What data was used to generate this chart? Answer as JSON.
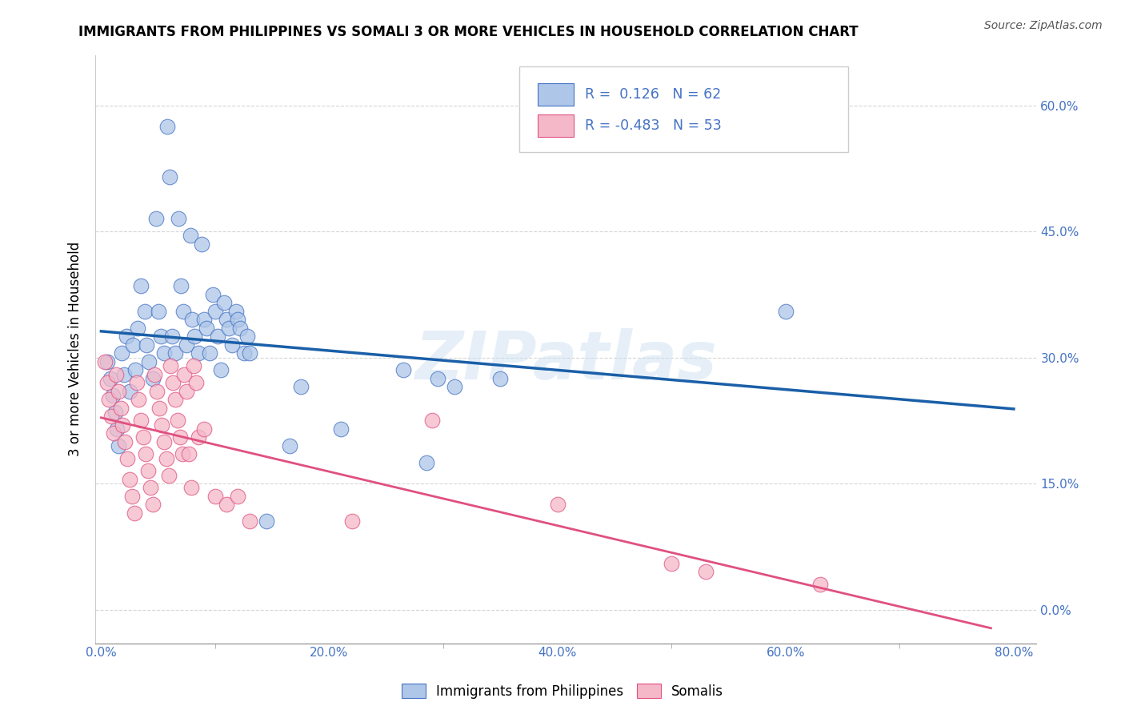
{
  "title": "IMMIGRANTS FROM PHILIPPINES VS SOMALI 3 OR MORE VEHICLES IN HOUSEHOLD CORRELATION CHART",
  "source": "Source: ZipAtlas.com",
  "xlabel_ticks": [
    "0.0%",
    "",
    "20.0%",
    "",
    "40.0%",
    "",
    "60.0%",
    "",
    "80.0%"
  ],
  "xlabel_tick_vals": [
    0.0,
    0.1,
    0.2,
    0.3,
    0.4,
    0.5,
    0.6,
    0.7,
    0.8
  ],
  "ylabel": "3 or more Vehicles in Household",
  "ylabel_ticks": [
    "0.0%",
    "15.0%",
    "30.0%",
    "45.0%",
    "60.0%"
  ],
  "ylabel_tick_vals": [
    0.0,
    0.15,
    0.3,
    0.45,
    0.6
  ],
  "xlim": [
    -0.005,
    0.82
  ],
  "ylim": [
    -0.04,
    0.66
  ],
  "watermark": "ZIPatlas",
  "legend_blue_label": "Immigrants from Philippines",
  "legend_pink_label": "Somalis",
  "blue_R": 0.126,
  "blue_N": 62,
  "pink_R": -0.483,
  "pink_N": 53,
  "blue_color": "#aec6e8",
  "pink_color": "#f5b8c8",
  "blue_edge_color": "#4472c4",
  "pink_edge_color": "#e05080",
  "blue_line_color": "#1a5fa8",
  "pink_line_color": "#e05080",
  "blue_scatter": [
    [
      0.005,
      0.295
    ],
    [
      0.008,
      0.275
    ],
    [
      0.01,
      0.255
    ],
    [
      0.012,
      0.235
    ],
    [
      0.014,
      0.215
    ],
    [
      0.015,
      0.195
    ],
    [
      0.018,
      0.305
    ],
    [
      0.02,
      0.28
    ],
    [
      0.022,
      0.325
    ],
    [
      0.025,
      0.26
    ],
    [
      0.028,
      0.315
    ],
    [
      0.03,
      0.285
    ],
    [
      0.032,
      0.335
    ],
    [
      0.035,
      0.385
    ],
    [
      0.038,
      0.355
    ],
    [
      0.04,
      0.315
    ],
    [
      0.042,
      0.295
    ],
    [
      0.045,
      0.275
    ],
    [
      0.048,
      0.465
    ],
    [
      0.05,
      0.355
    ],
    [
      0.052,
      0.325
    ],
    [
      0.055,
      0.305
    ],
    [
      0.058,
      0.575
    ],
    [
      0.06,
      0.515
    ],
    [
      0.062,
      0.325
    ],
    [
      0.065,
      0.305
    ],
    [
      0.068,
      0.465
    ],
    [
      0.07,
      0.385
    ],
    [
      0.072,
      0.355
    ],
    [
      0.075,
      0.315
    ],
    [
      0.078,
      0.445
    ],
    [
      0.08,
      0.345
    ],
    [
      0.082,
      0.325
    ],
    [
      0.085,
      0.305
    ],
    [
      0.088,
      0.435
    ],
    [
      0.09,
      0.345
    ],
    [
      0.092,
      0.335
    ],
    [
      0.095,
      0.305
    ],
    [
      0.098,
      0.375
    ],
    [
      0.1,
      0.355
    ],
    [
      0.102,
      0.325
    ],
    [
      0.105,
      0.285
    ],
    [
      0.108,
      0.365
    ],
    [
      0.11,
      0.345
    ],
    [
      0.112,
      0.335
    ],
    [
      0.115,
      0.315
    ],
    [
      0.118,
      0.355
    ],
    [
      0.12,
      0.345
    ],
    [
      0.122,
      0.335
    ],
    [
      0.125,
      0.305
    ],
    [
      0.128,
      0.325
    ],
    [
      0.13,
      0.305
    ],
    [
      0.145,
      0.105
    ],
    [
      0.165,
      0.195
    ],
    [
      0.175,
      0.265
    ],
    [
      0.21,
      0.215
    ],
    [
      0.265,
      0.285
    ],
    [
      0.285,
      0.175
    ],
    [
      0.295,
      0.275
    ],
    [
      0.31,
      0.265
    ],
    [
      0.35,
      0.275
    ],
    [
      0.6,
      0.355
    ]
  ],
  "pink_scatter": [
    [
      0.003,
      0.295
    ],
    [
      0.005,
      0.27
    ],
    [
      0.007,
      0.25
    ],
    [
      0.009,
      0.23
    ],
    [
      0.011,
      0.21
    ],
    [
      0.013,
      0.28
    ],
    [
      0.015,
      0.26
    ],
    [
      0.017,
      0.24
    ],
    [
      0.019,
      0.22
    ],
    [
      0.021,
      0.2
    ],
    [
      0.023,
      0.18
    ],
    [
      0.025,
      0.155
    ],
    [
      0.027,
      0.135
    ],
    [
      0.029,
      0.115
    ],
    [
      0.031,
      0.27
    ],
    [
      0.033,
      0.25
    ],
    [
      0.035,
      0.225
    ],
    [
      0.037,
      0.205
    ],
    [
      0.039,
      0.185
    ],
    [
      0.041,
      0.165
    ],
    [
      0.043,
      0.145
    ],
    [
      0.045,
      0.125
    ],
    [
      0.047,
      0.28
    ],
    [
      0.049,
      0.26
    ],
    [
      0.051,
      0.24
    ],
    [
      0.053,
      0.22
    ],
    [
      0.055,
      0.2
    ],
    [
      0.057,
      0.18
    ],
    [
      0.059,
      0.16
    ],
    [
      0.061,
      0.29
    ],
    [
      0.063,
      0.27
    ],
    [
      0.065,
      0.25
    ],
    [
      0.067,
      0.225
    ],
    [
      0.069,
      0.205
    ],
    [
      0.071,
      0.185
    ],
    [
      0.073,
      0.28
    ],
    [
      0.075,
      0.26
    ],
    [
      0.077,
      0.185
    ],
    [
      0.079,
      0.145
    ],
    [
      0.081,
      0.29
    ],
    [
      0.083,
      0.27
    ],
    [
      0.085,
      0.205
    ],
    [
      0.09,
      0.215
    ],
    [
      0.1,
      0.135
    ],
    [
      0.11,
      0.125
    ],
    [
      0.12,
      0.135
    ],
    [
      0.13,
      0.105
    ],
    [
      0.22,
      0.105
    ],
    [
      0.29,
      0.225
    ],
    [
      0.4,
      0.125
    ],
    [
      0.5,
      0.055
    ],
    [
      0.53,
      0.045
    ],
    [
      0.63,
      0.03
    ]
  ]
}
